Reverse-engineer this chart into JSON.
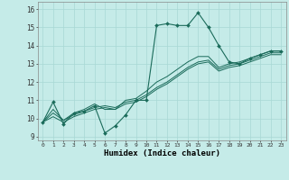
{
  "xlabel": "Humidex (Indice chaleur)",
  "background_color": "#c5ebe8",
  "grid_color": "#a8d8d4",
  "line_color": "#1a6b5a",
  "xlim": [
    -0.5,
    23.5
  ],
  "ylim": [
    8.8,
    16.4
  ],
  "yticks": [
    9,
    10,
    11,
    12,
    13,
    14,
    15,
    16
  ],
  "xtick_labels": [
    "0",
    "1",
    "2",
    "3",
    "4",
    "5",
    "6",
    "7",
    "8",
    "9",
    "10",
    "11",
    "12",
    "13",
    "14",
    "15",
    "16",
    "17",
    "18",
    "19",
    "20",
    "21",
    "22",
    "23"
  ],
  "series": [
    [
      9.8,
      10.9,
      9.7,
      10.3,
      10.4,
      10.7,
      9.2,
      9.6,
      10.2,
      11.0,
      11.0,
      15.1,
      15.2,
      15.1,
      15.1,
      15.8,
      15.0,
      14.0,
      13.1,
      13.0,
      13.3,
      13.5,
      13.7,
      13.7
    ],
    [
      9.8,
      10.5,
      9.9,
      10.3,
      10.5,
      10.8,
      10.5,
      10.5,
      11.0,
      11.1,
      11.5,
      12.0,
      12.3,
      12.7,
      13.1,
      13.4,
      13.4,
      12.8,
      13.0,
      13.1,
      13.3,
      13.5,
      13.7,
      13.7
    ],
    [
      9.8,
      10.3,
      9.9,
      10.2,
      10.4,
      10.6,
      10.7,
      10.6,
      10.9,
      11.0,
      11.3,
      11.7,
      12.0,
      12.4,
      12.8,
      13.1,
      13.2,
      12.7,
      12.9,
      13.0,
      13.2,
      13.4,
      13.6,
      13.6
    ],
    [
      9.8,
      10.1,
      9.8,
      10.1,
      10.3,
      10.5,
      10.6,
      10.5,
      10.8,
      10.9,
      11.2,
      11.6,
      11.9,
      12.3,
      12.7,
      13.0,
      13.1,
      12.6,
      12.8,
      12.9,
      13.1,
      13.3,
      13.5,
      13.5
    ]
  ],
  "figsize": [
    3.2,
    2.0
  ],
  "dpi": 100
}
